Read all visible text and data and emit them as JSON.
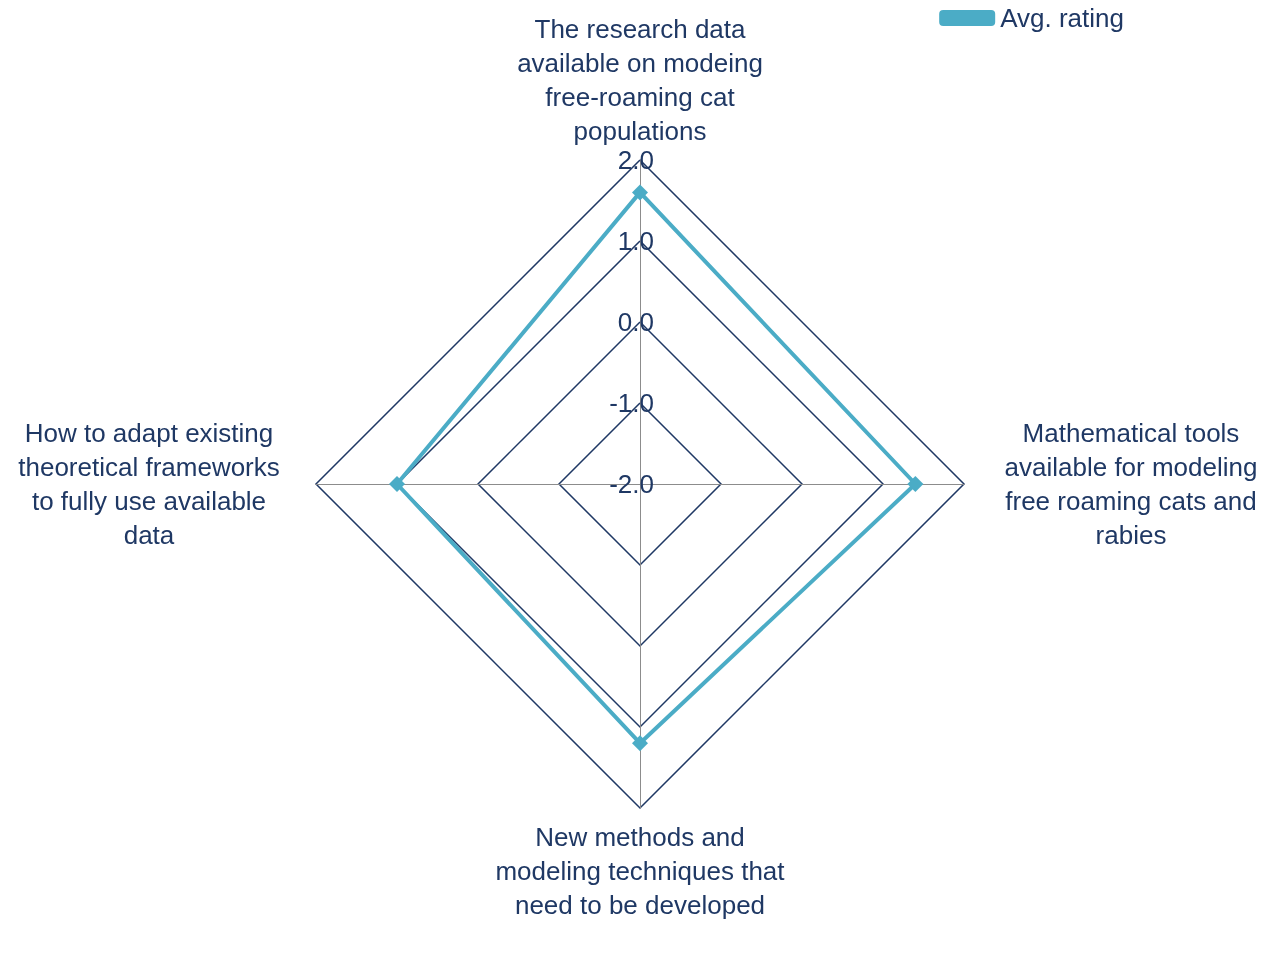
{
  "chart_data": {
    "type": "radar",
    "categories": [
      "The research data available on modeing free-roaming cat populations",
      "Mathematical tools available for modeling free roaming cats and rabies",
      "New methods and modeling techniques that need to be developed",
      "How to adapt existing theoretical frameworks to fully use available data"
    ],
    "series": [
      {
        "name": "Avg. rating",
        "color": "#4bacc6",
        "values": [
          1.6,
          1.4,
          1.2,
          1.0
        ]
      }
    ],
    "ylim": [
      -2,
      2
    ],
    "yticks": [
      {
        "value": -2,
        "label": "-2.0"
      },
      {
        "value": -1,
        "label": "-1.0"
      },
      {
        "value": 0,
        "label": "0.0"
      },
      {
        "value": 1,
        "label": "1.0"
      },
      {
        "value": 2,
        "label": "2.0"
      }
    ],
    "marker": "diamond",
    "legend": "top right"
  }
}
